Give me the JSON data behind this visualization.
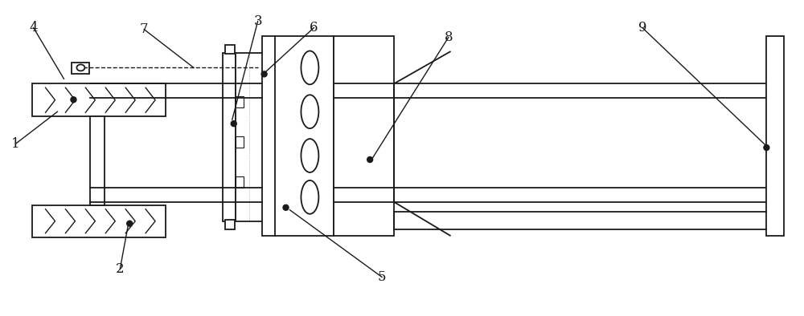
{
  "bg_color": "#ffffff",
  "lc": "#1a1a1a",
  "fig_width": 10.0,
  "fig_height": 3.94,
  "dpi": 100
}
